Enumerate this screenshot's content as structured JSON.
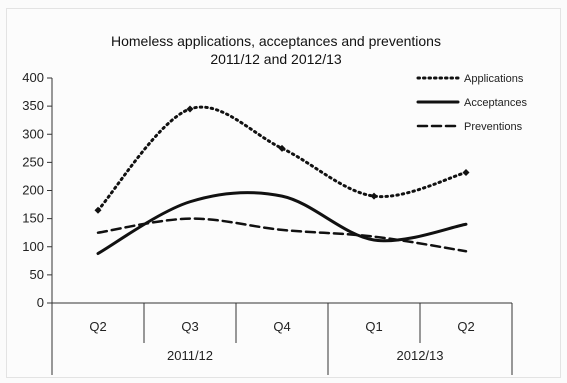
{
  "chart_data": {
    "type": "line",
    "title": "Homeless applications, acceptances and preventions",
    "subtitle": "2011/12 and 2012/13",
    "categories": [
      "Q2",
      "Q3",
      "Q4",
      "Q1",
      "Q2"
    ],
    "category_groups": [
      {
        "label": "2011/12",
        "span": 3
      },
      {
        "label": "2012/13",
        "span": 2
      }
    ],
    "ylim": [
      0,
      400
    ],
    "yticks": [
      0,
      50,
      100,
      150,
      200,
      250,
      300,
      350,
      400
    ],
    "grid": false,
    "legend_position": "top-right",
    "series": [
      {
        "name": "Applications",
        "values": [
          165,
          345,
          275,
          190,
          232
        ],
        "style": "dotted",
        "marker": "diamond",
        "color": "#111111"
      },
      {
        "name": "Acceptances",
        "values": [
          88,
          180,
          190,
          112,
          140
        ],
        "style": "solid",
        "color": "#111111"
      },
      {
        "name": "Preventions",
        "values": [
          125,
          150,
          130,
          118,
          92
        ],
        "style": "dashed",
        "color": "#111111"
      }
    ]
  }
}
